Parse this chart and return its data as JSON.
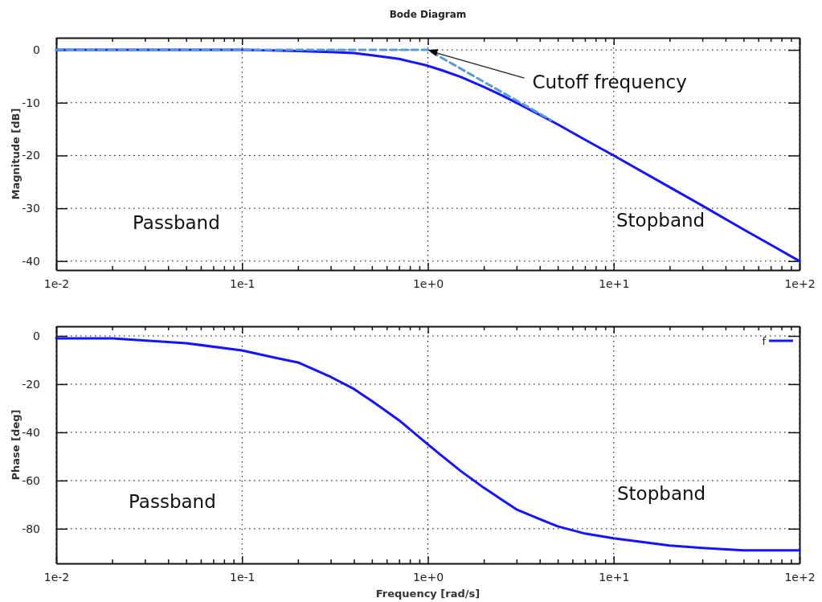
{
  "chart_data": [
    {
      "type": "line",
      "title": "Bode Diagram",
      "ylabel": "Magnitude [dB]",
      "log": "x",
      "grid": true,
      "legend": false,
      "xlim": [
        0.01,
        100
      ],
      "ylim": [
        -41.7,
        2.3
      ],
      "xticks": [
        {
          "value": 0.01,
          "label": "1e-2"
        },
        {
          "value": 0.02,
          "label": null
        },
        {
          "value": 0.03,
          "label": null
        },
        {
          "value": 0.04,
          "label": null
        },
        {
          "value": 0.05,
          "label": null
        },
        {
          "value": 0.06,
          "label": null
        },
        {
          "value": 0.07,
          "label": null
        },
        {
          "value": 0.08,
          "label": null
        },
        {
          "value": 0.09,
          "label": null
        },
        {
          "value": 0.1,
          "label": "1e-1"
        },
        {
          "value": 0.2,
          "label": null
        },
        {
          "value": 0.3,
          "label": null
        },
        {
          "value": 0.4,
          "label": null
        },
        {
          "value": 0.5,
          "label": null
        },
        {
          "value": 0.6,
          "label": null
        },
        {
          "value": 0.7,
          "label": null
        },
        {
          "value": 0.8,
          "label": null
        },
        {
          "value": 0.9,
          "label": null
        },
        {
          "value": 1,
          "label": "1e+0"
        },
        {
          "value": 2,
          "label": null
        },
        {
          "value": 3,
          "label": null
        },
        {
          "value": 4,
          "label": null
        },
        {
          "value": 5,
          "label": null
        },
        {
          "value": 6,
          "label": null
        },
        {
          "value": 7,
          "label": null
        },
        {
          "value": 8,
          "label": null
        },
        {
          "value": 9,
          "label": null
        },
        {
          "value": 10,
          "label": "1e+1"
        },
        {
          "value": 20,
          "label": null
        },
        {
          "value": 30,
          "label": null
        },
        {
          "value": 40,
          "label": null
        },
        {
          "value": 50,
          "label": null
        },
        {
          "value": 60,
          "label": null
        },
        {
          "value": 70,
          "label": null
        },
        {
          "value": 80,
          "label": null
        },
        {
          "value": 90,
          "label": null
        },
        {
          "value": 100,
          "label": "1e+2"
        }
      ],
      "yticks": [
        0,
        -10,
        -20,
        -30,
        -40
      ],
      "series": [
        {
          "color": "#1414ff",
          "line_style": "solid",
          "x": [
            0.01,
            0.02,
            0.05,
            0.1,
            0.15,
            0.2,
            0.3,
            0.4,
            0.5,
            0.7,
            1,
            1.2,
            1.5,
            2,
            2.5,
            3,
            4,
            5,
            7,
            10,
            20,
            30,
            50,
            70,
            100
          ],
          "values": [
            0,
            0,
            0,
            0,
            -0.1,
            -0.2,
            -0.4,
            -0.6,
            -1,
            -1.7,
            -3,
            -3.9,
            -5.1,
            -7,
            -8.6,
            -10,
            -12.3,
            -14.1,
            -17,
            -20,
            -26,
            -29.5,
            -34,
            -36.9,
            -40
          ]
        },
        {
          "color": "#5b9bd5",
          "line_style": "dashed",
          "x": [
            0.01,
            1,
            4.6
          ],
          "values": [
            0,
            0,
            -13.3
          ]
        }
      ],
      "annotations": [
        {
          "text": "Cutoff frequency",
          "x": 1,
          "y": 0
        },
        "Passband",
        "Stopband"
      ]
    },
    {
      "type": "line",
      "xlabel": "Frequency [rad/s]",
      "ylabel": "Phase [deg]",
      "log": "x",
      "grid": true,
      "legend": "top right",
      "xlim": [
        0.01,
        100
      ],
      "ylim": [
        -94.4,
        4
      ],
      "xticks": [
        {
          "value": 0.01,
          "label": "1e-2"
        },
        {
          "value": 0.02,
          "label": null
        },
        {
          "value": 0.03,
          "label": null
        },
        {
          "value": 0.04,
          "label": null
        },
        {
          "value": 0.05,
          "label": null
        },
        {
          "value": 0.06,
          "label": null
        },
        {
          "value": 0.07,
          "label": null
        },
        {
          "value": 0.08,
          "label": null
        },
        {
          "value": 0.09,
          "label": null
        },
        {
          "value": 0.1,
          "label": "1e-1"
        },
        {
          "value": 0.2,
          "label": null
        },
        {
          "value": 0.3,
          "label": null
        },
        {
          "value": 0.4,
          "label": null
        },
        {
          "value": 0.5,
          "label": null
        },
        {
          "value": 0.6,
          "label": null
        },
        {
          "value": 0.7,
          "label": null
        },
        {
          "value": 0.8,
          "label": null
        },
        {
          "value": 0.9,
          "label": null
        },
        {
          "value": 1,
          "label": "1e+0"
        },
        {
          "value": 2,
          "label": null
        },
        {
          "value": 3,
          "label": null
        },
        {
          "value": 4,
          "label": null
        },
        {
          "value": 5,
          "label": null
        },
        {
          "value": 6,
          "label": null
        },
        {
          "value": 7,
          "label": null
        },
        {
          "value": 8,
          "label": null
        },
        {
          "value": 9,
          "label": null
        },
        {
          "value": 10,
          "label": "1e+1"
        },
        {
          "value": 20,
          "label": null
        },
        {
          "value": 30,
          "label": null
        },
        {
          "value": 40,
          "label": null
        },
        {
          "value": 50,
          "label": null
        },
        {
          "value": 60,
          "label": null
        },
        {
          "value": 70,
          "label": null
        },
        {
          "value": 80,
          "label": null
        },
        {
          "value": 90,
          "label": null
        },
        {
          "value": 100,
          "label": "1e+2"
        }
      ],
      "yticks": [
        0,
        -20,
        -40,
        -60,
        -80
      ],
      "series": [
        {
          "name": "f",
          "color": "#1414ff",
          "line_style": "solid",
          "x": [
            0.01,
            0.02,
            0.05,
            0.1,
            0.15,
            0.2,
            0.3,
            0.4,
            0.5,
            0.7,
            1,
            1.2,
            1.5,
            2,
            2.5,
            3,
            4,
            5,
            7,
            10,
            20,
            30,
            50,
            70,
            100
          ],
          "values": [
            -1,
            -1,
            -3,
            -6,
            -9,
            -11,
            -17,
            -22,
            -27,
            -35,
            -45,
            -50,
            -56,
            -63,
            -68,
            -72,
            -76,
            -79,
            -82,
            -84,
            -87,
            -88,
            -89,
            -89,
            -89
          ]
        }
      ],
      "annotations": [
        "Passband",
        "Stopband"
      ]
    }
  ]
}
